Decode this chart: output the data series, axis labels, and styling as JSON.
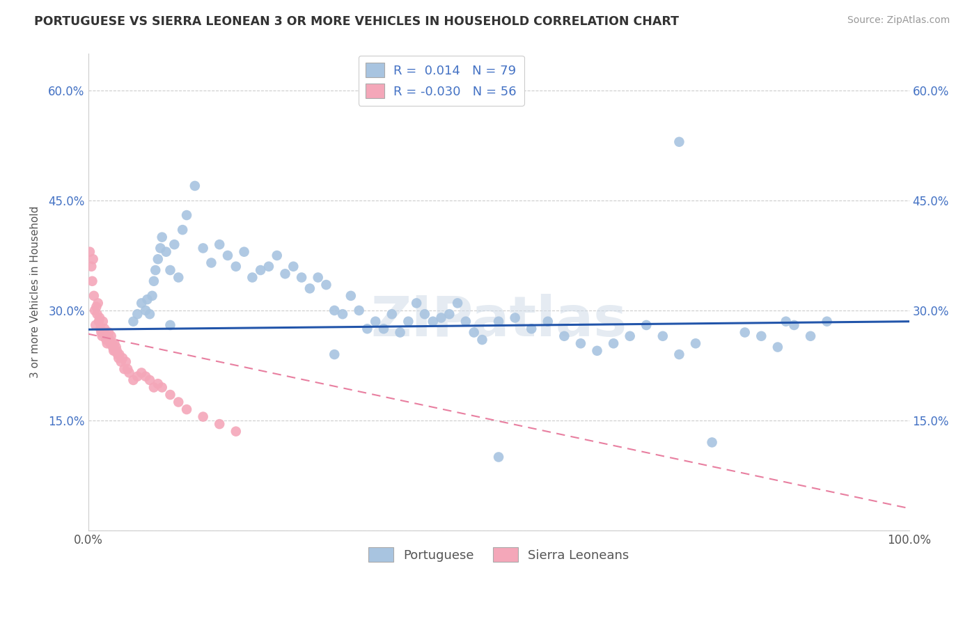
{
  "title": "PORTUGUESE VS SIERRA LEONEAN 3 OR MORE VEHICLES IN HOUSEHOLD CORRELATION CHART",
  "source": "Source: ZipAtlas.com",
  "ylabel": "3 or more Vehicles in Household",
  "xlim": [
    0.0,
    1.0
  ],
  "ylim": [
    0.0,
    0.65
  ],
  "xticks": [
    0.0,
    0.2,
    0.4,
    0.6,
    0.8,
    1.0
  ],
  "xticklabels": [
    "0.0%",
    "",
    "",
    "",
    "",
    "100.0%"
  ],
  "yticks": [
    0.0,
    0.15,
    0.3,
    0.45,
    0.6
  ],
  "yticklabels": [
    "",
    "15.0%",
    "30.0%",
    "45.0%",
    "60.0%"
  ],
  "portuguese_R": 0.014,
  "portuguese_N": 79,
  "sierra_R": -0.03,
  "sierra_N": 56,
  "blue_color": "#a8c4e0",
  "pink_color": "#f4a7b9",
  "blue_line_color": "#2255aa",
  "pink_line_color": "#e87fa0",
  "legend_text_color": "#4472c4",
  "watermark": "ZIPatlas",
  "portuguese_x": [
    0.055,
    0.06,
    0.065,
    0.07,
    0.072,
    0.075,
    0.078,
    0.08,
    0.082,
    0.085,
    0.088,
    0.09,
    0.095,
    0.1,
    0.1,
    0.105,
    0.11,
    0.115,
    0.12,
    0.13,
    0.14,
    0.15,
    0.16,
    0.17,
    0.18,
    0.19,
    0.2,
    0.21,
    0.22,
    0.23,
    0.24,
    0.25,
    0.26,
    0.27,
    0.28,
    0.29,
    0.3,
    0.31,
    0.32,
    0.33,
    0.34,
    0.35,
    0.36,
    0.37,
    0.38,
    0.39,
    0.4,
    0.41,
    0.42,
    0.43,
    0.44,
    0.45,
    0.46,
    0.47,
    0.48,
    0.5,
    0.52,
    0.54,
    0.56,
    0.58,
    0.6,
    0.62,
    0.64,
    0.66,
    0.68,
    0.7,
    0.72,
    0.74,
    0.76,
    0.8,
    0.82,
    0.84,
    0.86,
    0.88,
    0.9,
    0.72,
    0.85,
    0.5,
    0.3
  ],
  "portuguese_y": [
    0.285,
    0.295,
    0.31,
    0.3,
    0.315,
    0.295,
    0.32,
    0.34,
    0.355,
    0.37,
    0.385,
    0.4,
    0.38,
    0.28,
    0.355,
    0.39,
    0.345,
    0.41,
    0.43,
    0.47,
    0.385,
    0.365,
    0.39,
    0.375,
    0.36,
    0.38,
    0.345,
    0.355,
    0.36,
    0.375,
    0.35,
    0.36,
    0.345,
    0.33,
    0.345,
    0.335,
    0.3,
    0.295,
    0.32,
    0.3,
    0.275,
    0.285,
    0.275,
    0.295,
    0.27,
    0.285,
    0.31,
    0.295,
    0.285,
    0.29,
    0.295,
    0.31,
    0.285,
    0.27,
    0.26,
    0.285,
    0.29,
    0.275,
    0.285,
    0.265,
    0.255,
    0.245,
    0.255,
    0.265,
    0.28,
    0.265,
    0.24,
    0.255,
    0.12,
    0.27,
    0.265,
    0.25,
    0.28,
    0.265,
    0.285,
    0.53,
    0.285,
    0.1,
    0.24
  ],
  "sierra_x": [
    0.002,
    0.004,
    0.005,
    0.006,
    0.007,
    0.008,
    0.009,
    0.01,
    0.011,
    0.012,
    0.013,
    0.014,
    0.015,
    0.016,
    0.017,
    0.018,
    0.019,
    0.02,
    0.021,
    0.022,
    0.023,
    0.024,
    0.025,
    0.026,
    0.027,
    0.028,
    0.029,
    0.03,
    0.031,
    0.032,
    0.033,
    0.034,
    0.035,
    0.036,
    0.037,
    0.038,
    0.04,
    0.042,
    0.044,
    0.046,
    0.048,
    0.05,
    0.055,
    0.06,
    0.065,
    0.07,
    0.075,
    0.08,
    0.085,
    0.09,
    0.1,
    0.11,
    0.12,
    0.14,
    0.16,
    0.18
  ],
  "sierra_y": [
    0.38,
    0.36,
    0.34,
    0.37,
    0.32,
    0.3,
    0.28,
    0.305,
    0.295,
    0.31,
    0.285,
    0.29,
    0.275,
    0.27,
    0.265,
    0.285,
    0.27,
    0.275,
    0.265,
    0.26,
    0.255,
    0.26,
    0.27,
    0.26,
    0.255,
    0.265,
    0.255,
    0.25,
    0.245,
    0.255,
    0.245,
    0.25,
    0.245,
    0.24,
    0.235,
    0.24,
    0.23,
    0.235,
    0.22,
    0.23,
    0.22,
    0.215,
    0.205,
    0.21,
    0.215,
    0.21,
    0.205,
    0.195,
    0.2,
    0.195,
    0.185,
    0.175,
    0.165,
    0.155,
    0.145,
    0.135
  ],
  "background_color": "#ffffff",
  "grid_color": "#cccccc"
}
